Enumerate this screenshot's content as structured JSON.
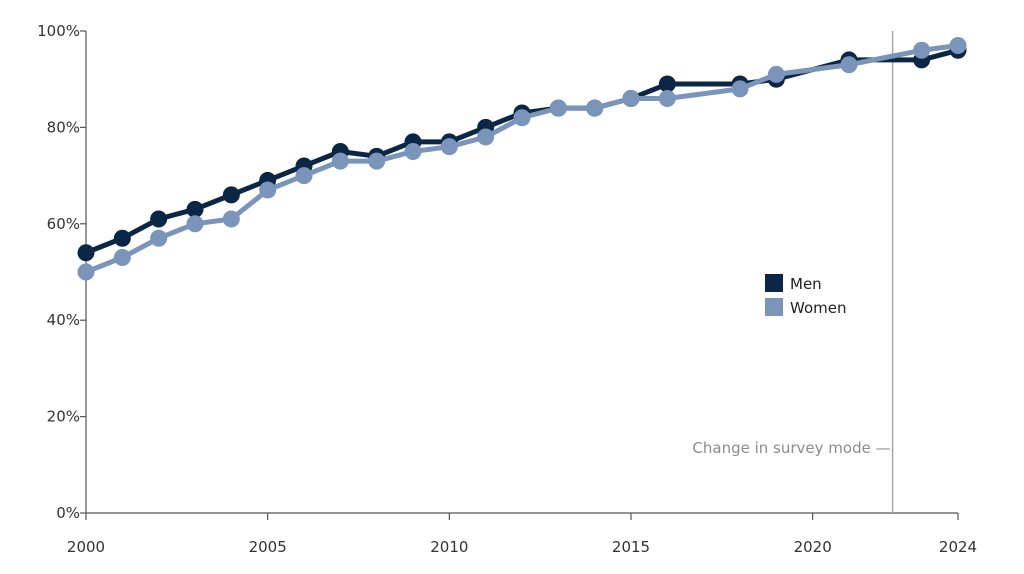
{
  "chart_data": {
    "type": "line",
    "x": [
      2000,
      2001,
      2002,
      2003,
      2004,
      2005,
      2006,
      2007,
      2008,
      2009,
      2010,
      2011,
      2012,
      2013,
      2014,
      2015,
      2016,
      2018,
      2019,
      2021,
      2023,
      2024
    ],
    "series": [
      {
        "name": "Men",
        "color": "#0b2745",
        "values": [
          54,
          57,
          61,
          63,
          66,
          69,
          72,
          75,
          74,
          77,
          77,
          80,
          83,
          84,
          84,
          86,
          89,
          89,
          90,
          94,
          94,
          96
        ]
      },
      {
        "name": "Women",
        "color": "#7b95ba",
        "values": [
          50,
          53,
          57,
          60,
          61,
          67,
          70,
          73,
          73,
          75,
          76,
          78,
          82,
          84,
          84,
          86,
          86,
          88,
          91,
          93,
          96,
          97
        ]
      }
    ],
    "xlim": [
      2000,
      2024
    ],
    "ylim": [
      0,
      100
    ],
    "x_ticks": [
      "2000",
      "2005",
      "2010",
      "2015",
      "2020",
      "2024"
    ],
    "y_ticks": [
      "0%",
      "20%",
      "40%",
      "60%",
      "80%",
      "100%"
    ],
    "grid": false,
    "legend_position": "center-right",
    "annotation": {
      "text": "Change in survey mode —",
      "x": 2022.2
    }
  }
}
